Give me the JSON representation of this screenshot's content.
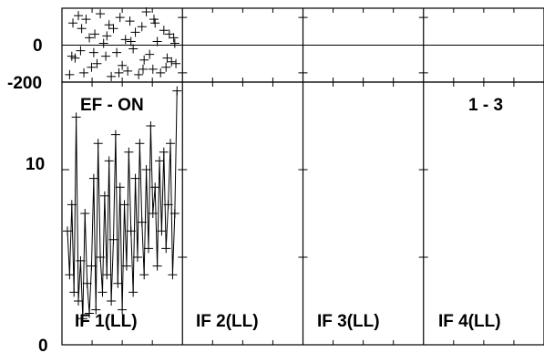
{
  "chart_data": {
    "type": "line",
    "title_left": "EF - ON",
    "title_right": "1 - 3",
    "phase_panel": {
      "type": "scatter",
      "ylim": [
        -200,
        200
      ],
      "yticks": [
        0,
        -200
      ],
      "panels": [
        {
          "label": "IF 1(LL)",
          "x": [
            0.02,
            0.05,
            0.07,
            0.1,
            0.12,
            0.15,
            0.17,
            0.2,
            0.22,
            0.25,
            0.27,
            0.3,
            0.33,
            0.35,
            0.38,
            0.4,
            0.42,
            0.45,
            0.48,
            0.5,
            0.53,
            0.55,
            0.57,
            0.6,
            0.62,
            0.65,
            0.68,
            0.7,
            0.72,
            0.75,
            0.78,
            0.8,
            0.82,
            0.85,
            0.88,
            0.9,
            0.93,
            0.95,
            0.97,
            0.99,
            0.04,
            0.13,
            0.24,
            0.36,
            0.47,
            0.58,
            0.69,
            0.79,
            0.91,
            0.98
          ],
          "y": [
            -160,
            120,
            -70,
            160,
            -30,
            -150,
            140,
            40,
            -120,
            60,
            -100,
            170,
            10,
            -60,
            110,
            -170,
            90,
            -40,
            150,
            -110,
            30,
            -140,
            130,
            -20,
            70,
            -160,
            100,
            -80,
            180,
            -50,
            -130,
            120,
            20,
            -150,
            80,
            -120,
            60,
            -90,
            40,
            -100,
            -60,
            90,
            -40,
            50,
            -150,
            20,
            -130,
            140,
            -70,
            10
          ]
        },
        {
          "label": "IF 2(LL)",
          "x": [],
          "y": []
        },
        {
          "label": "IF 3(LL)",
          "x": [],
          "y": []
        },
        {
          "label": "IF 4(LL)",
          "x": [],
          "y": []
        }
      ]
    },
    "amp_panel": {
      "type": "line",
      "ylim": [
        0,
        15
      ],
      "yticks": [
        0,
        10
      ],
      "panels": [
        {
          "label": "IF 1(LL)",
          "x": [
            0.0,
            0.02,
            0.04,
            0.06,
            0.08,
            0.1,
            0.12,
            0.14,
            0.16,
            0.18,
            0.2,
            0.22,
            0.24,
            0.26,
            0.28,
            0.3,
            0.32,
            0.34,
            0.36,
            0.38,
            0.4,
            0.42,
            0.44,
            0.46,
            0.48,
            0.5,
            0.52,
            0.54,
            0.56,
            0.58,
            0.6,
            0.62,
            0.64,
            0.66,
            0.68,
            0.7,
            0.72,
            0.74,
            0.76,
            0.78,
            0.8,
            0.82,
            0.84,
            0.86,
            0.88,
            0.9,
            0.92,
            0.94,
            0.96,
            0.98,
            1.0
          ],
          "y": [
            6.5,
            4.0,
            8.0,
            3.0,
            13.0,
            2.5,
            4.8,
            1.5,
            7.5,
            3.5,
            1.8,
            4.5,
            9.5,
            2.0,
            11.5,
            5.0,
            3.0,
            8.5,
            4.0,
            10.5,
            2.5,
            6.0,
            12.0,
            3.5,
            9.0,
            2.0,
            8.0,
            4.5,
            11.0,
            6.5,
            3.0,
            9.5,
            5.0,
            11.5,
            7.0,
            4.0,
            10.0,
            5.5,
            12.5,
            7.5,
            9.0,
            4.5,
            10.5,
            6.5,
            11.0,
            5.5,
            8.0,
            11.5,
            4.0,
            7.5,
            14.5
          ]
        },
        {
          "label": "IF 2(LL)",
          "x": [],
          "y": []
        },
        {
          "label": "IF 3(LL)",
          "x": [],
          "y": []
        },
        {
          "label": "IF 4(LL)",
          "x": [],
          "y": []
        }
      ]
    }
  }
}
